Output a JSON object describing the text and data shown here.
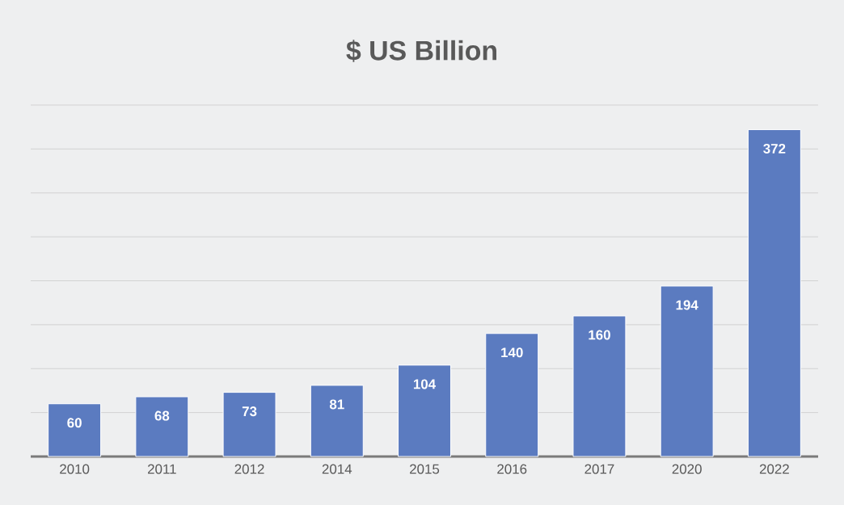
{
  "chart_data": {
    "type": "bar",
    "title": "$ US Billion",
    "categories": [
      "2010",
      "2011",
      "2012",
      "2014",
      "2015",
      "2016",
      "2017",
      "2020",
      "2022"
    ],
    "values": [
      60,
      68,
      73,
      81,
      104,
      140,
      160,
      194,
      372
    ],
    "color": "#5b7bc0",
    "ylim": [
      0,
      400
    ],
    "yticks": [
      {
        "value": 0,
        "label": null
      },
      {
        "value": 50,
        "label": null
      },
      {
        "value": 100,
        "label": null
      },
      {
        "value": 150,
        "label": null
      },
      {
        "value": 200,
        "label": null
      },
      {
        "value": 250,
        "label": null
      },
      {
        "value": 300,
        "label": null
      },
      {
        "value": 350,
        "label": null
      },
      {
        "value": 400,
        "label": null
      }
    ],
    "tick_labels": "x",
    "grid": "y",
    "data_labels": true
  }
}
